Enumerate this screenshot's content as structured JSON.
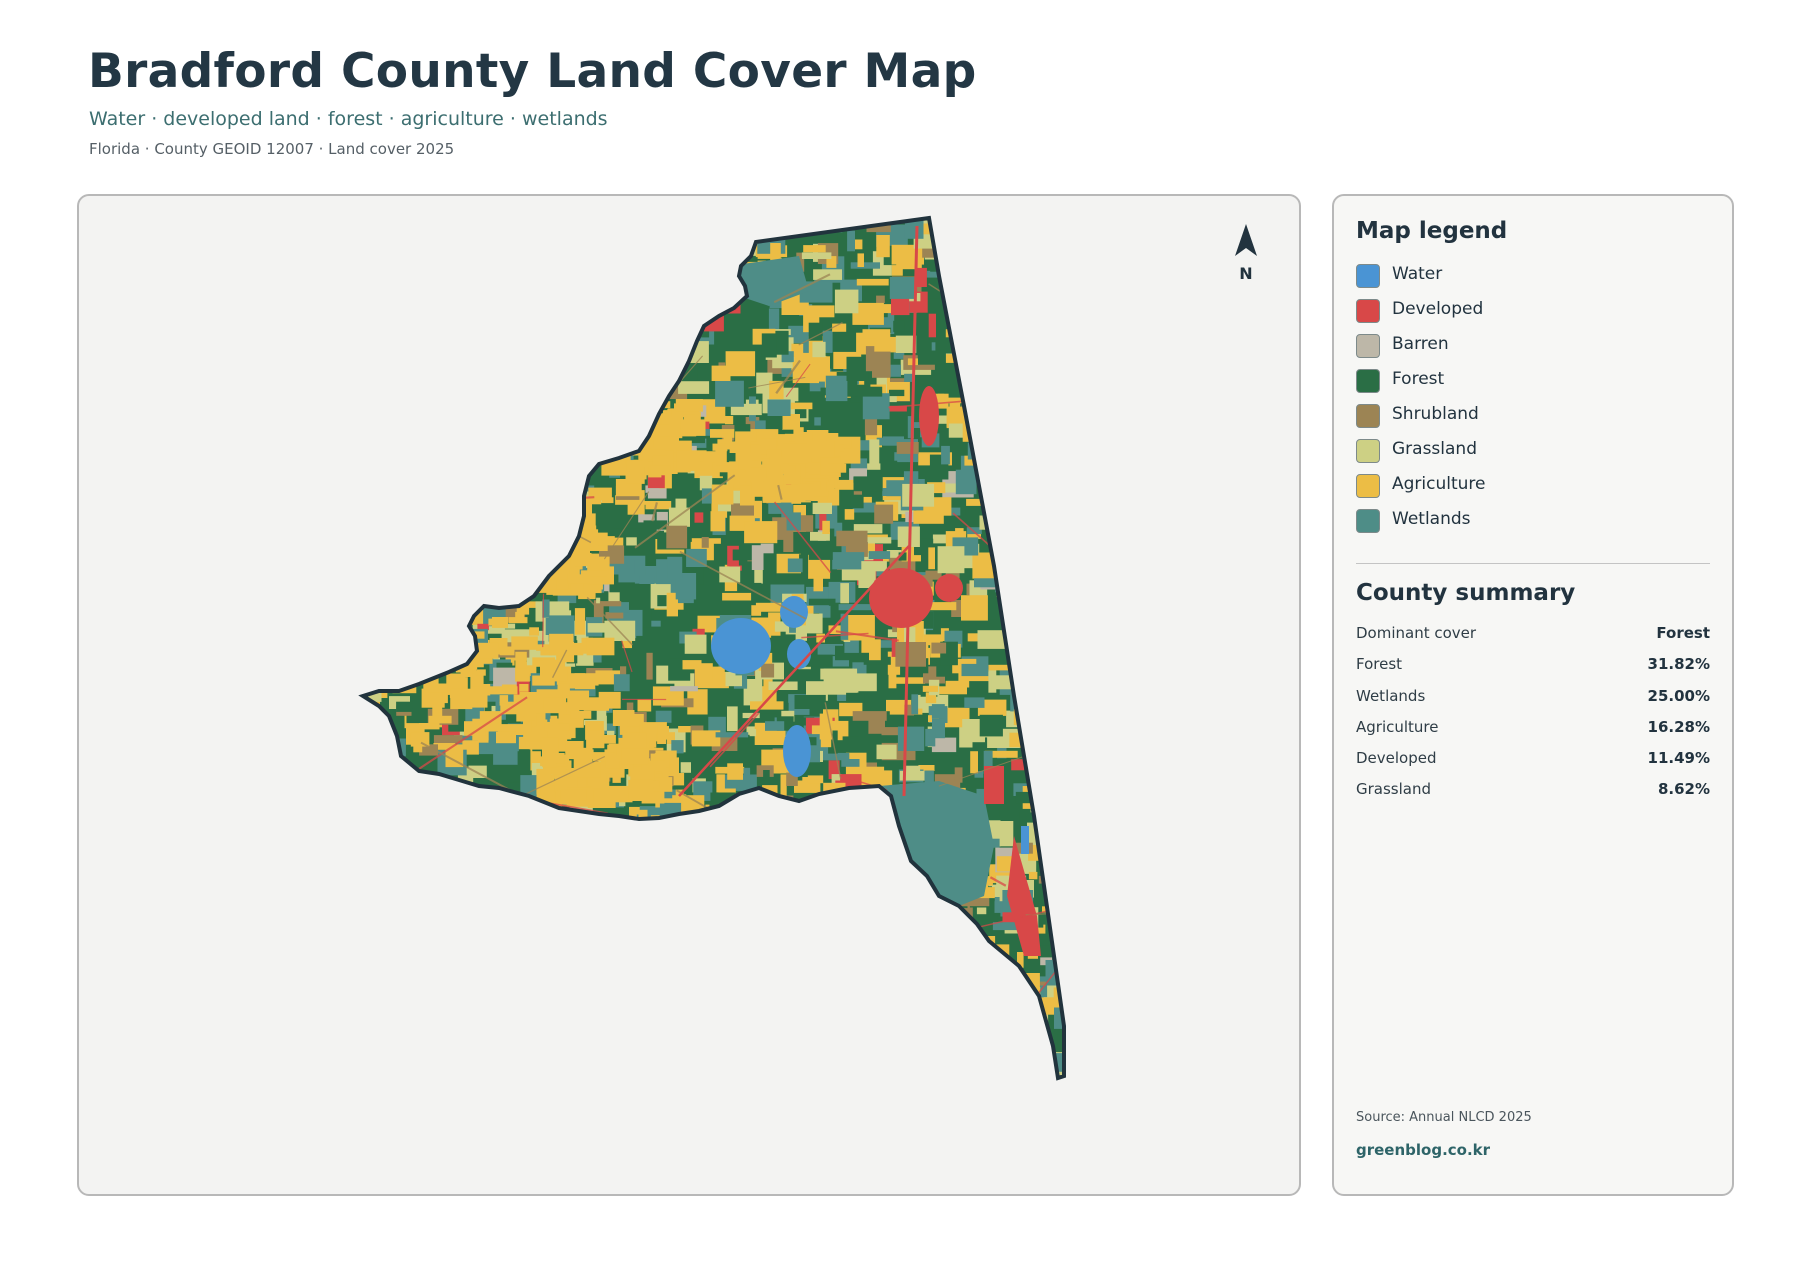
{
  "header": {
    "title": "Bradford County Land Cover Map",
    "subtitle": "Water · developed land · forest · agriculture · wetlands",
    "meta": "Florida · County GEOID 12007 · Land cover 2025"
  },
  "map": {
    "north_label": "N",
    "colors": {
      "water": "#4a94d4",
      "developed": "#d84848",
      "barren": "#bdb7a8",
      "forest": "#2a6e45",
      "shrubland": "#9c8454",
      "grassland": "#cdd084",
      "agriculture": "#ecbd45",
      "wetlands": "#4e8d87",
      "outline": "#21333d"
    }
  },
  "legend": {
    "title": "Map legend",
    "items": [
      {
        "label": "Water",
        "color": "#4a94d4"
      },
      {
        "label": "Developed",
        "color": "#d84848"
      },
      {
        "label": "Barren",
        "color": "#bdb7a8"
      },
      {
        "label": "Forest",
        "color": "#2a6e45"
      },
      {
        "label": "Shrubland",
        "color": "#9c8454"
      },
      {
        "label": "Grassland",
        "color": "#cdd084"
      },
      {
        "label": "Agriculture",
        "color": "#ecbd45"
      },
      {
        "label": "Wetlands",
        "color": "#4e8d87"
      }
    ]
  },
  "summary": {
    "title": "County summary",
    "rows": [
      {
        "label": "Dominant cover",
        "value": "Forest"
      },
      {
        "label": "Forest",
        "value": "31.82%"
      },
      {
        "label": "Wetlands",
        "value": "25.00%"
      },
      {
        "label": "Agriculture",
        "value": "16.28%"
      },
      {
        "label": "Developed",
        "value": "11.49%"
      },
      {
        "label": "Grassland",
        "value": "8.62%"
      }
    ]
  },
  "footer": {
    "source": "Source: Annual NLCD 2025",
    "site": "greenblog.co.kr"
  }
}
